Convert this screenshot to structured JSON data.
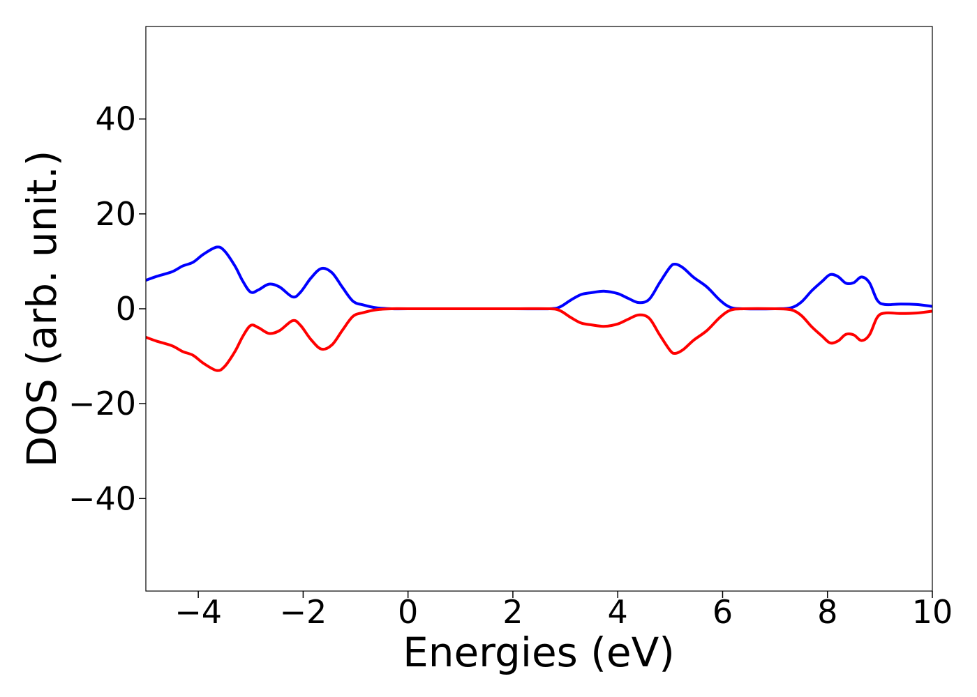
{
  "chart_data": {
    "type": "line",
    "title": "",
    "xlabel": "Energies (eV)",
    "ylabel": "DOS (arb. unit.)",
    "xlim": [
      -5,
      10
    ],
    "ylim": [
      -59.5,
      59.5
    ],
    "grid": false,
    "legend": "none",
    "x_ticks": [
      -4,
      -2,
      0,
      2,
      4,
      6,
      8,
      10
    ],
    "x_tick_labels": [
      "−4",
      "−2",
      "0",
      "2",
      "4",
      "6",
      "8",
      "10"
    ],
    "y_ticks": [
      -40,
      -20,
      0,
      20,
      40
    ],
    "y_tick_labels": [
      "−40",
      "−20",
      "0",
      "20",
      "40"
    ],
    "series": [
      {
        "color": "#0000ff",
        "points": [
          [
            -5.0,
            6.0
          ],
          [
            -4.8,
            6.8
          ],
          [
            -4.5,
            7.8
          ],
          [
            -4.3,
            9.0
          ],
          [
            -4.1,
            9.8
          ],
          [
            -3.9,
            11.5
          ],
          [
            -3.65,
            13.0
          ],
          [
            -3.5,
            12.2
          ],
          [
            -3.3,
            9.0
          ],
          [
            -3.15,
            5.8
          ],
          [
            -3.0,
            3.5
          ],
          [
            -2.85,
            4.0
          ],
          [
            -2.65,
            5.2
          ],
          [
            -2.45,
            4.6
          ],
          [
            -2.2,
            2.5
          ],
          [
            -2.05,
            3.5
          ],
          [
            -1.85,
            6.5
          ],
          [
            -1.65,
            8.5
          ],
          [
            -1.45,
            7.6
          ],
          [
            -1.25,
            4.5
          ],
          [
            -1.05,
            1.6
          ],
          [
            -0.85,
            0.8
          ],
          [
            -0.6,
            0.2
          ],
          [
            -0.3,
            0.0
          ],
          [
            0.0,
            0.0
          ],
          [
            1.0,
            0.0
          ],
          [
            2.0,
            0.0
          ],
          [
            2.7,
            0.0
          ],
          [
            2.9,
            0.4
          ],
          [
            3.1,
            1.8
          ],
          [
            3.3,
            3.0
          ],
          [
            3.5,
            3.4
          ],
          [
            3.75,
            3.7
          ],
          [
            4.0,
            3.2
          ],
          [
            4.2,
            2.2
          ],
          [
            4.4,
            1.3
          ],
          [
            4.6,
            2.0
          ],
          [
            4.8,
            5.5
          ],
          [
            5.0,
            8.8
          ],
          [
            5.1,
            9.4
          ],
          [
            5.25,
            8.6
          ],
          [
            5.45,
            6.6
          ],
          [
            5.7,
            4.6
          ],
          [
            5.95,
            1.8
          ],
          [
            6.15,
            0.3
          ],
          [
            6.4,
            0.0
          ],
          [
            7.0,
            0.0
          ],
          [
            7.3,
            0.2
          ],
          [
            7.5,
            1.4
          ],
          [
            7.7,
            3.8
          ],
          [
            7.9,
            5.8
          ],
          [
            8.05,
            7.2
          ],
          [
            8.2,
            6.8
          ],
          [
            8.35,
            5.4
          ],
          [
            8.5,
            5.5
          ],
          [
            8.65,
            6.7
          ],
          [
            8.8,
            5.5
          ],
          [
            8.95,
            1.8
          ],
          [
            9.1,
            0.9
          ],
          [
            9.4,
            1.0
          ],
          [
            9.7,
            0.9
          ],
          [
            10.0,
            0.5
          ]
        ]
      },
      {
        "color": "#ff0000",
        "points": [
          [
            -5.0,
            -6.0
          ],
          [
            -4.8,
            -6.8
          ],
          [
            -4.5,
            -7.8
          ],
          [
            -4.3,
            -9.0
          ],
          [
            -4.1,
            -9.8
          ],
          [
            -3.9,
            -11.5
          ],
          [
            -3.65,
            -13.0
          ],
          [
            -3.5,
            -12.2
          ],
          [
            -3.3,
            -9.0
          ],
          [
            -3.15,
            -5.8
          ],
          [
            -3.0,
            -3.5
          ],
          [
            -2.85,
            -4.0
          ],
          [
            -2.65,
            -5.2
          ],
          [
            -2.45,
            -4.6
          ],
          [
            -2.2,
            -2.5
          ],
          [
            -2.05,
            -3.5
          ],
          [
            -1.85,
            -6.5
          ],
          [
            -1.65,
            -8.5
          ],
          [
            -1.45,
            -7.6
          ],
          [
            -1.25,
            -4.5
          ],
          [
            -1.05,
            -1.6
          ],
          [
            -0.85,
            -0.8
          ],
          [
            -0.6,
            -0.2
          ],
          [
            -0.3,
            0.0
          ],
          [
            0.0,
            0.0
          ],
          [
            1.0,
            0.0
          ],
          [
            2.0,
            0.0
          ],
          [
            2.7,
            0.0
          ],
          [
            2.9,
            -0.4
          ],
          [
            3.1,
            -1.8
          ],
          [
            3.3,
            -3.0
          ],
          [
            3.5,
            -3.4
          ],
          [
            3.75,
            -3.7
          ],
          [
            4.0,
            -3.2
          ],
          [
            4.2,
            -2.2
          ],
          [
            4.4,
            -1.3
          ],
          [
            4.6,
            -2.0
          ],
          [
            4.8,
            -5.5
          ],
          [
            5.0,
            -8.8
          ],
          [
            5.1,
            -9.4
          ],
          [
            5.25,
            -8.6
          ],
          [
            5.45,
            -6.6
          ],
          [
            5.7,
            -4.6
          ],
          [
            5.95,
            -1.8
          ],
          [
            6.15,
            -0.3
          ],
          [
            6.4,
            0.0
          ],
          [
            7.0,
            0.0
          ],
          [
            7.3,
            -0.2
          ],
          [
            7.5,
            -1.4
          ],
          [
            7.7,
            -3.8
          ],
          [
            7.9,
            -5.8
          ],
          [
            8.05,
            -7.2
          ],
          [
            8.2,
            -6.8
          ],
          [
            8.35,
            -5.4
          ],
          [
            8.5,
            -5.5
          ],
          [
            8.65,
            -6.7
          ],
          [
            8.8,
            -5.5
          ],
          [
            8.95,
            -1.8
          ],
          [
            9.1,
            -0.9
          ],
          [
            9.4,
            -1.0
          ],
          [
            9.7,
            -0.9
          ],
          [
            10.0,
            -0.5
          ]
        ]
      }
    ]
  }
}
